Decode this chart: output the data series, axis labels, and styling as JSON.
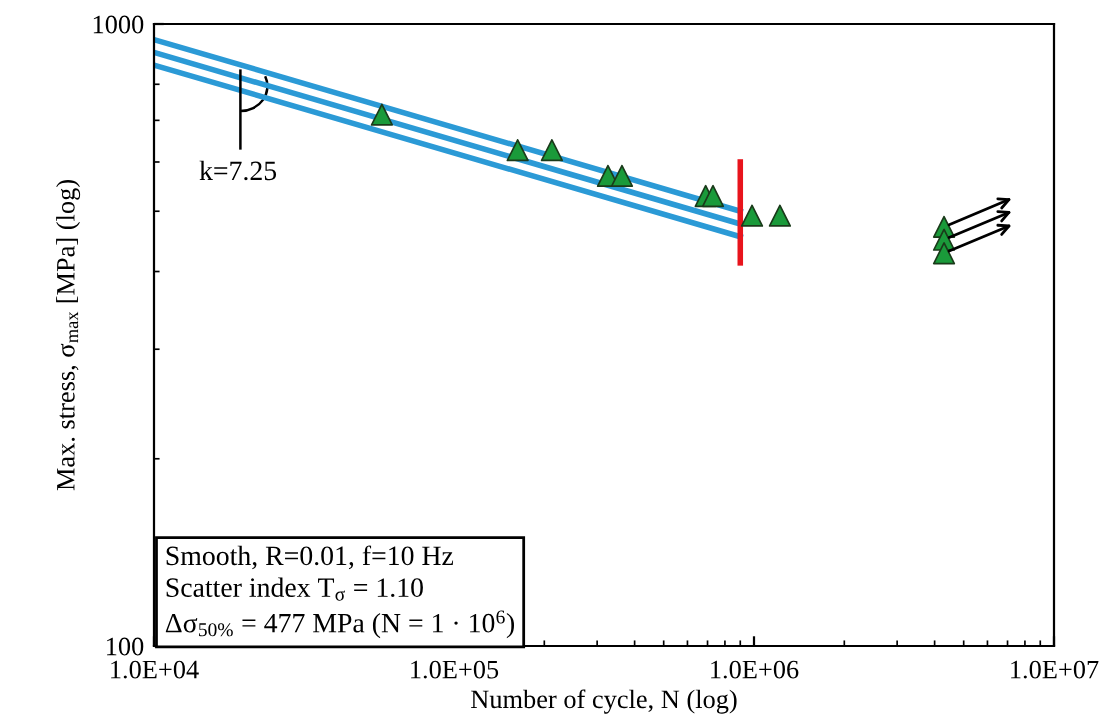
{
  "chart_data": {
    "type": "scatter",
    "xlabel": "Number of cycle, N (log)",
    "ylabel": "Max. stress, σ$_{max}$ [MPa] (log)",
    "log": "xy",
    "grid": false,
    "legend": false,
    "xlim": [
      10000,
      10000000
    ],
    "ylim": [
      100,
      1000
    ],
    "xticks": [
      {
        "value": 10000,
        "label": "1.0E+04"
      },
      {
        "value": 100000,
        "label": "1.0E+05"
      },
      {
        "value": 1000000,
        "label": "1.0E+06"
      },
      {
        "value": 10000000,
        "label": "1.0E+07"
      }
    ],
    "yticks": [
      100,
      1000
    ],
    "series": [
      {
        "type": "line",
        "marker": "none",
        "color": "#2b9ad6",
        "x": [
          10000,
          900000
        ],
        "values": [
          944,
          500
        ]
      },
      {
        "type": "line",
        "marker": "none",
        "color": "#2b9ad6",
        "x": [
          10000,
          900000
        ],
        "values": [
          900,
          477
        ]
      },
      {
        "type": "line",
        "marker": "none",
        "color": "#2b9ad6",
        "x": [
          10000,
          900000
        ],
        "values": [
          859,
          455
        ]
      },
      {
        "type": "line",
        "marker": "none",
        "color": "#e8141c",
        "x": [
          900000,
          900000
        ],
        "values": [
          600,
          413
        ]
      },
      {
        "marker": "triangle",
        "color": "#1a9a3a",
        "x": [
          57500,
          163000,
          212000,
          326000,
          363000,
          690000,
          730000,
          985000,
          1220000
        ],
        "values": [
          715,
          627,
          627,
          570,
          570,
          529,
          529,
          492,
          492
        ]
      },
      {
        "marker": "triangle",
        "color": "#1a9a3a",
        "x": [
          4300000,
          4300000,
          4300000
        ],
        "values": [
          472,
          450,
          428
        ]
      }
    ],
    "annotations": [
      "k=7.25",
      "Smooth, R=0.01, f=10 Hz",
      "Scatter index T$_{σ}$ = 1.10",
      "Δσ$_{50%}$ = 477 MPa (N = 1 · 10$^{6}$)"
    ]
  }
}
